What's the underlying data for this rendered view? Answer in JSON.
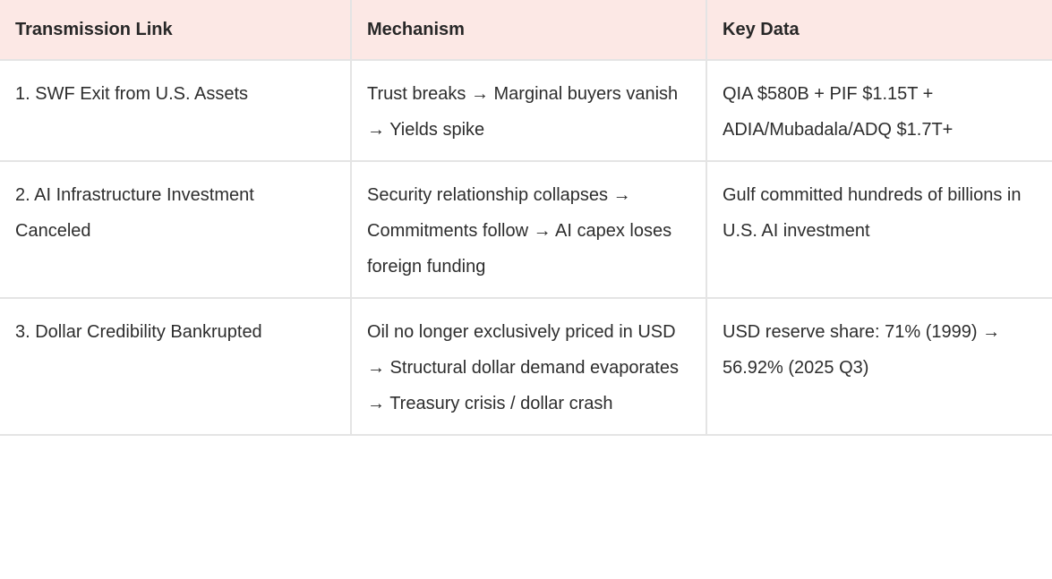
{
  "table": {
    "columns": [
      {
        "label": "Transmission Link"
      },
      {
        "label": "Mechanism"
      },
      {
        "label": "Key Data"
      }
    ],
    "rows": [
      {
        "link": "1. SWF Exit from U.S. Assets",
        "mechanism": "Trust breaks → Marginal buyers vanish → Yields spike",
        "key_data": "QIA $580B + PIF $1.15T + ADIA/Mubadala/ADQ $1.7T+"
      },
      {
        "link": "2. AI Infrastructure Investment Canceled",
        "mechanism": "Security relationship collapses → Commitments follow → AI capex loses foreign funding",
        "key_data": "Gulf committed hundreds of billions in U.S. AI investment"
      },
      {
        "link": "3. Dollar Credibility Bankrupted",
        "mechanism": "Oil no longer exclusively priced in USD → Structural dollar demand evaporates → Treasury crisis / dollar crash",
        "key_data": "USD reserve share: 71% (1999) → 56.92% (2025 Q3)"
      }
    ],
    "colors": {
      "header_bg": "#fce8e5",
      "border": "#e4e4e4",
      "text": "#2d2d2d"
    }
  }
}
